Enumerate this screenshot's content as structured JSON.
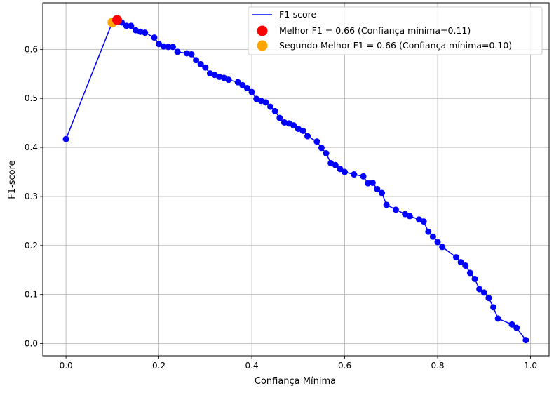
{
  "chart_data": {
    "type": "line",
    "xlabel": "Confiança Mínima",
    "ylabel": "F1-score",
    "xlim": [
      -0.05,
      1.04
    ],
    "ylim": [
      -0.025,
      0.695
    ],
    "grid": true,
    "legend_position": "top-right",
    "x_ticks": [
      0.0,
      0.2,
      0.4,
      0.6,
      0.8,
      1.0
    ],
    "x_tick_labels": [
      "0.0",
      "0.2",
      "0.4",
      "0.6",
      "0.8",
      "1.0"
    ],
    "y_ticks": [
      0.0,
      0.1,
      0.2,
      0.3,
      0.4,
      0.5,
      0.6
    ],
    "y_tick_labels": [
      "0.0",
      "0.1",
      "0.2",
      "0.3",
      "0.4",
      "0.5",
      "0.6"
    ],
    "series": [
      {
        "name": "F1-score",
        "color": "#0000ff",
        "x": [
          0.0,
          0.1,
          0.11,
          0.12,
          0.13,
          0.14,
          0.15,
          0.16,
          0.17,
          0.19,
          0.2,
          0.21,
          0.22,
          0.23,
          0.24,
          0.26,
          0.27,
          0.28,
          0.29,
          0.3,
          0.31,
          0.32,
          0.33,
          0.34,
          0.35,
          0.37,
          0.38,
          0.39,
          0.4,
          0.41,
          0.42,
          0.43,
          0.44,
          0.45,
          0.46,
          0.47,
          0.48,
          0.49,
          0.5,
          0.51,
          0.52,
          0.54,
          0.55,
          0.56,
          0.57,
          0.58,
          0.59,
          0.6,
          0.62,
          0.64,
          0.65,
          0.66,
          0.67,
          0.68,
          0.69,
          0.71,
          0.73,
          0.74,
          0.76,
          0.77,
          0.78,
          0.79,
          0.8,
          0.81,
          0.84,
          0.85,
          0.86,
          0.87,
          0.88,
          0.89,
          0.9,
          0.91,
          0.92,
          0.93,
          0.96,
          0.97,
          0.99
        ],
        "y": [
          0.417,
          0.656,
          0.661,
          0.655,
          0.648,
          0.648,
          0.639,
          0.636,
          0.634,
          0.624,
          0.611,
          0.606,
          0.605,
          0.605,
          0.595,
          0.592,
          0.59,
          0.578,
          0.57,
          0.563,
          0.551,
          0.548,
          0.544,
          0.542,
          0.538,
          0.533,
          0.527,
          0.521,
          0.513,
          0.499,
          0.495,
          0.492,
          0.483,
          0.474,
          0.46,
          0.451,
          0.449,
          0.445,
          0.438,
          0.434,
          0.423,
          0.412,
          0.399,
          0.388,
          0.368,
          0.364,
          0.356,
          0.35,
          0.345,
          0.341,
          0.327,
          0.328,
          0.315,
          0.307,
          0.283,
          0.273,
          0.264,
          0.26,
          0.253,
          0.249,
          0.228,
          0.218,
          0.207,
          0.197,
          0.176,
          0.166,
          0.159,
          0.144,
          0.132,
          0.111,
          0.104,
          0.093,
          0.074,
          0.051,
          0.039,
          0.032,
          0.007
        ]
      }
    ],
    "highlights": [
      {
        "name": "Melhor F1 = 0.66 (Confiança mínima=0.11)",
        "x": 0.11,
        "y": 0.66,
        "color": "#ff0000"
      },
      {
        "name": "Segundo Melhor F1 = 0.66 (Confiança mínima=0.10)",
        "x": 0.1,
        "y": 0.655,
        "color": "#ffa500"
      }
    ]
  }
}
